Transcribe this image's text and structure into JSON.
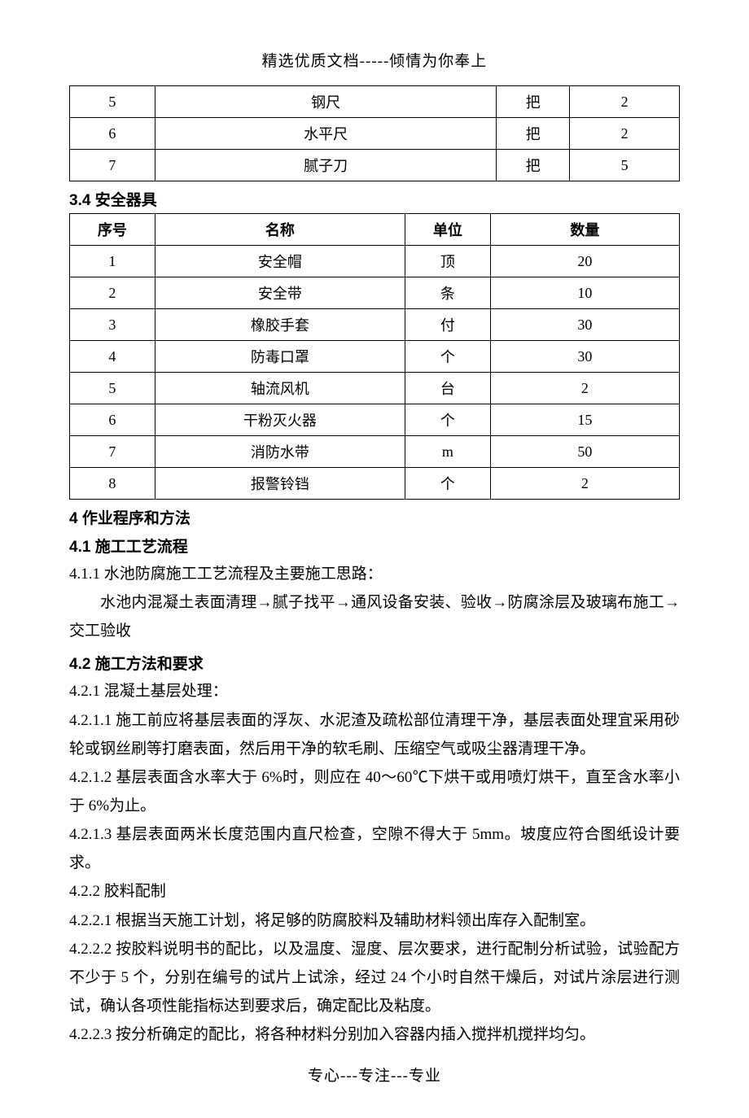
{
  "header": "精选优质文档-----倾情为你奉上",
  "footer": "专心---专注---专业",
  "table1": {
    "rows": [
      {
        "seq": "5",
        "name": "钢尺",
        "unit": "把",
        "qty": "2"
      },
      {
        "seq": "6",
        "name": "水平尺",
        "unit": "把",
        "qty": "2"
      },
      {
        "seq": "7",
        "name": "腻子刀",
        "unit": "把",
        "qty": "5"
      }
    ]
  },
  "sec34_title": "3.4 安全器具",
  "table2": {
    "headers": {
      "seq": "序号",
      "name": "名称",
      "unit": "单位",
      "qty": "数量"
    },
    "rows": [
      {
        "seq": "1",
        "name": "安全帽",
        "unit": "顶",
        "qty": "20"
      },
      {
        "seq": "2",
        "name": "安全带",
        "unit": "条",
        "qty": "10"
      },
      {
        "seq": "3",
        "name": "橡胶手套",
        "unit": "付",
        "qty": "30"
      },
      {
        "seq": "4",
        "name": "防毒口罩",
        "unit": "个",
        "qty": "30"
      },
      {
        "seq": "5",
        "name": "轴流风机",
        "unit": "台",
        "qty": "2"
      },
      {
        "seq": "6",
        "name": "干粉灭火器",
        "unit": "个",
        "qty": "15"
      },
      {
        "seq": "7",
        "name": "消防水带",
        "unit": "m",
        "qty": "50"
      },
      {
        "seq": "8",
        "name": "报警铃铛",
        "unit": "个",
        "qty": "2"
      }
    ]
  },
  "sec4_title": "4 作业程序和方法",
  "sec41_title": "4.1 施工工艺流程",
  "p411": "4.1.1 水池防腐施工工艺流程及主要施工思路：",
  "p411_flow": "水池内混凝土表面清理→腻子找平→通风设备安装、验收→防腐涂层及玻璃布施工→交工验收",
  "sec42_title": "4.2 施工方法和要求",
  "p421": "4.2.1 混凝土基层处理：",
  "p4211": "4.2.1.1 施工前应将基层表面的浮灰、水泥渣及疏松部位清理干净，基层表面处理宜采用砂轮或钢丝刷等打磨表面，然后用干净的软毛刷、压缩空气或吸尘器清理干净。",
  "p4212": "4.2.1.2 基层表面含水率大于 6%时，则应在 40～60℃下烘干或用喷灯烘干，直至含水率小于 6%为止。",
  "p4213": "4.2.1.3 基层表面两米长度范围内直尺检查，空隙不得大于 5mm。坡度应符合图纸设计要求。",
  "p422": "4.2.2 胶料配制",
  "p4221": "4.2.2.1 根据当天施工计划，将足够的防腐胶料及辅助材料领出库存入配制室。",
  "p4222": "4.2.2.2 按胶料说明书的配比，以及温度、湿度、层次要求，进行配制分析试验，试验配方不少于 5 个，分别在编号的试片上试涂，经过 24 个小时自然干燥后，对试片涂层进行测试，确认各项性能指标达到要求后，确定配比及粘度。",
  "p4223": "4.2.2.3 按分析确定的配比，将各种材料分别加入容器内插入搅拌机搅拌均匀。"
}
